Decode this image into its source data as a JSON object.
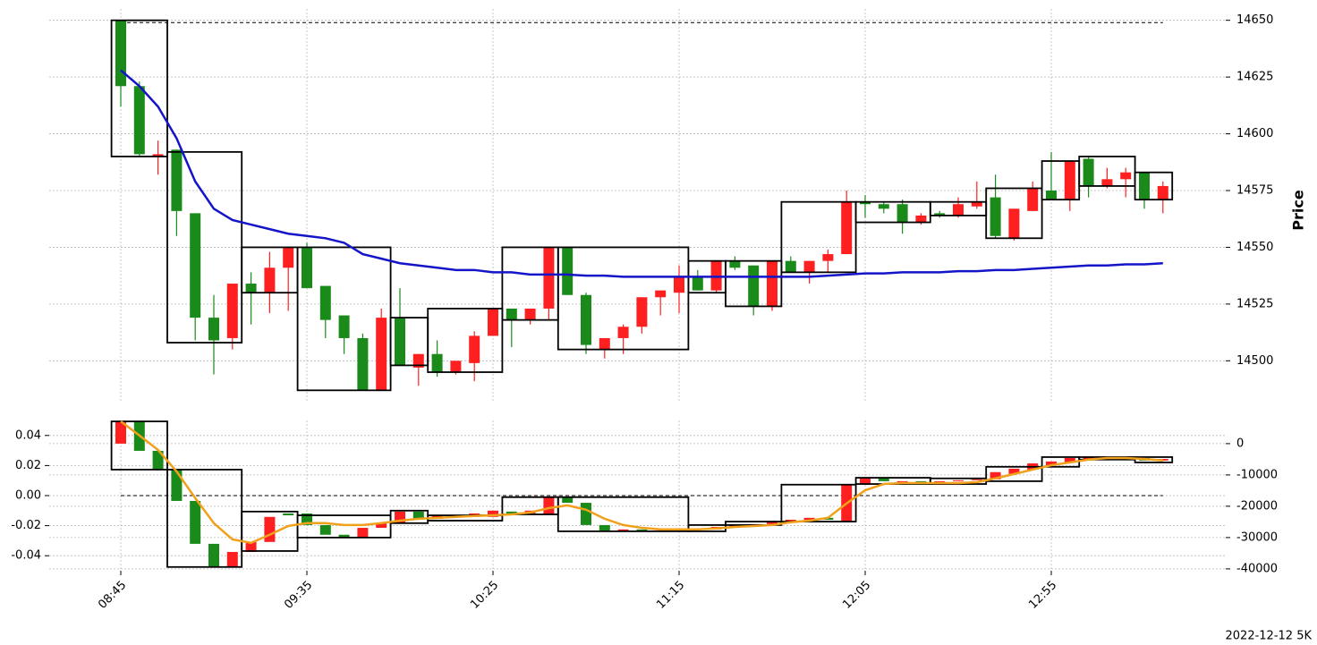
{
  "chart_data": [
    {
      "type": "candlestick",
      "ylabel": "Price",
      "ylim": [
        14482,
        14655
      ],
      "yticks": [
        14500,
        14525,
        14550,
        14575,
        14600,
        14625,
        14650
      ],
      "grid": true,
      "up_color": "#fe2020",
      "down_color": "#1a8a1a",
      "values": [
        [
          14650,
          14650,
          14612,
          14621
        ],
        [
          14621,
          14623,
          14590,
          14591
        ],
        [
          14590,
          14597,
          14582,
          14591
        ],
        [
          14593,
          14593,
          14555,
          14566
        ],
        [
          14565,
          14565,
          14509,
          14519
        ],
        [
          14519,
          14529,
          14494,
          14509
        ],
        [
          14510,
          14534,
          14505,
          14534
        ],
        [
          14534,
          14539,
          14516,
          14530
        ],
        [
          14530,
          14548,
          14521,
          14541
        ],
        [
          14541,
          14550,
          14522,
          14550
        ],
        [
          14550,
          14552,
          14532,
          14532
        ],
        [
          14533,
          14533,
          14510,
          14518
        ],
        [
          14520,
          14520,
          14503,
          14510
        ],
        [
          14510,
          14512,
          14487,
          14487
        ],
        [
          14487,
          14523,
          14487,
          14519
        ],
        [
          14519,
          14532,
          14498,
          14498
        ],
        [
          14497,
          14503,
          14489,
          14503
        ],
        [
          14503,
          14509,
          14493,
          14495
        ],
        [
          14495,
          14500,
          14494,
          14500
        ],
        [
          14499,
          14513,
          14491,
          14511
        ],
        [
          14511,
          14523,
          14511,
          14523
        ],
        [
          14523,
          14523,
          14506,
          14518
        ],
        [
          14518,
          14523,
          14516,
          14523
        ],
        [
          14523,
          14550,
          14518,
          14550
        ],
        [
          14550,
          14550,
          14529,
          14529
        ],
        [
          14529,
          14530,
          14503,
          14507
        ],
        [
          14505,
          14510,
          14501,
          14510
        ],
        [
          14510,
          14516,
          14503,
          14515
        ],
        [
          14515,
          14528,
          14512,
          14528
        ],
        [
          14528,
          14531,
          14520,
          14531
        ],
        [
          14530,
          14542,
          14521,
          14537
        ],
        [
          14537,
          14540,
          14531,
          14531
        ],
        [
          14531,
          14544,
          14530,
          14544
        ],
        [
          14544,
          14546,
          14540,
          14541
        ],
        [
          14542,
          14542,
          14520,
          14524
        ],
        [
          14524,
          14544,
          14522,
          14544
        ],
        [
          14544,
          14546,
          14539,
          14539
        ],
        [
          14539,
          14544,
          14534,
          14544
        ],
        [
          14544,
          14549,
          14539,
          14547
        ],
        [
          14547,
          14575,
          14547,
          14570
        ],
        [
          14570,
          14573,
          14563,
          14569
        ],
        [
          14569,
          14570,
          14565,
          14567
        ],
        [
          14569,
          14571,
          14556,
          14561
        ],
        [
          14561,
          14565,
          14560,
          14564
        ],
        [
          14565,
          14566,
          14563,
          14564
        ],
        [
          14564,
          14572,
          14563,
          14569
        ],
        [
          14568,
          14579,
          14567,
          14570
        ],
        [
          14572,
          14582,
          14554,
          14555
        ],
        [
          14554,
          14567,
          14553,
          14567
        ],
        [
          14566,
          14579,
          14566,
          14576
        ],
        [
          14575,
          14592,
          14571,
          14571
        ],
        [
          14571,
          14588,
          14566,
          14588
        ],
        [
          14589,
          14590,
          14572,
          14577
        ],
        [
          14577,
          14585,
          14576,
          14580
        ],
        [
          14580,
          14585,
          14572,
          14583
        ],
        [
          14583,
          14583,
          14567,
          14571
        ],
        [
          14571,
          14579,
          14565,
          14577
        ]
      ],
      "line": {
        "color": "#1414c8",
        "values": [
          14628,
          14621,
          14612,
          14598,
          14579,
          14567,
          14562,
          14560,
          14558,
          14556,
          14555,
          14554,
          14552,
          14547,
          14545,
          14543,
          14542,
          14541,
          14540,
          14540,
          14539,
          14539,
          14538,
          14538,
          14538,
          14537.5,
          14537.5,
          14537,
          14537,
          14537,
          14537,
          14537,
          14537,
          14537,
          14537,
          14537,
          14537,
          14537,
          14537.5,
          14538,
          14538.5,
          14538.5,
          14539,
          14539,
          14539,
          14539.5,
          14539.5,
          14540,
          14540,
          14540.5,
          14541,
          14541.5,
          14542,
          14542,
          14542.5,
          14542.5,
          14543
        ]
      },
      "hline": 14649,
      "boxes": [
        {
          "start": 0,
          "end": 2,
          "high": 14650,
          "low": 14590
        },
        {
          "start": 3,
          "end": 6,
          "high": 14592,
          "low": 14508
        },
        {
          "start": 7,
          "end": 9,
          "high": 14550,
          "low": 14530
        },
        {
          "start": 10,
          "end": 14,
          "high": 14550,
          "low": 14487
        },
        {
          "start": 15,
          "end": 16,
          "high": 14519,
          "low": 14498
        },
        {
          "start": 17,
          "end": 20,
          "high": 14523,
          "low": 14495
        },
        {
          "start": 21,
          "end": 23,
          "high": 14550,
          "low": 14518
        },
        {
          "start": 24,
          "end": 30,
          "high": 14550,
          "low": 14505
        },
        {
          "start": 31,
          "end": 32,
          "high": 14544,
          "low": 14530
        },
        {
          "start": 33,
          "end": 35,
          "high": 14544,
          "low": 14524
        },
        {
          "start": 36,
          "end": 39,
          "high": 14570,
          "low": 14539
        },
        {
          "start": 40,
          "end": 43,
          "high": 14570,
          "low": 14561
        },
        {
          "start": 44,
          "end": 46,
          "high": 14570,
          "low": 14564
        },
        {
          "start": 47,
          "end": 49,
          "high": 14576,
          "low": 14554
        },
        {
          "start": 50,
          "end": 51,
          "high": 14588,
          "low": 14571
        },
        {
          "start": 52,
          "end": 54,
          "high": 14590,
          "low": 14577
        },
        {
          "start": 55,
          "end": 56,
          "high": 14583,
          "low": 14571
        }
      ]
    },
    {
      "type": "candlestick",
      "categories": [
        "08:45",
        null,
        null,
        null,
        null,
        null,
        null,
        null,
        null,
        null,
        "09:35",
        null,
        null,
        null,
        null,
        null,
        null,
        null,
        null,
        null,
        "10:25",
        null,
        null,
        null,
        null,
        null,
        null,
        null,
        null,
        null,
        "11:15",
        null,
        null,
        null,
        null,
        null,
        null,
        null,
        null,
        null,
        "12:05",
        null,
        null,
        null,
        null,
        null,
        null,
        null,
        null,
        null,
        "12:55",
        null,
        null,
        null,
        null,
        null,
        null
      ],
      "ylim": [
        -0.05,
        0.05
      ],
      "yticks": [
        -0.04,
        -0.02,
        {
          "value": 0,
          "label": "0.00"
        },
        0.02,
        0.04
      ],
      "y2lim": [
        -40600,
        7400
      ],
      "y2ticks": [
        -40000,
        -30000,
        -20000,
        -10000,
        0
      ],
      "grid": true,
      "hline": 0,
      "values": [
        [
          0,
          7100
        ],
        [
          7100,
          -2300
        ],
        [
          -2300,
          -8300
        ],
        [
          -8300,
          -18300
        ],
        [
          -18300,
          -32000
        ],
        [
          -32000,
          -39400
        ],
        [
          -39400,
          -34600
        ],
        [
          -34600,
          -31400
        ],
        [
          -31400,
          -23400
        ],
        [
          -22300,
          -22900
        ],
        [
          -22300,
          -26000
        ],
        [
          -26000,
          -29100
        ],
        [
          -29100,
          -30000
        ],
        [
          -30000,
          -26900
        ],
        [
          -26900,
          -25400
        ],
        [
          -25400,
          -21700
        ],
        [
          -21700,
          -24000
        ],
        [
          -24000,
          -22900
        ],
        [
          -22900,
          -23400
        ],
        [
          -23400,
          -22300
        ],
        [
          -23400,
          -21400
        ],
        [
          -21700,
          -22300
        ],
        [
          -22300,
          -21400
        ],
        [
          -22600,
          -17100
        ],
        [
          -17100,
          -18900
        ],
        [
          -18900,
          -26000
        ],
        [
          -26000,
          -28000
        ],
        [
          -28000,
          -27400
        ],
        [
          -27400,
          -28000
        ],
        [
          -28000,
          -27700
        ],
        [
          -27700,
          -27100
        ],
        [
          -27100,
          -27400
        ],
        [
          -27400,
          -26600
        ],
        [
          -26600,
          -26000
        ],
        [
          -26000,
          -25700
        ],
        [
          -25700,
          -24900
        ],
        [
          -24900,
          -24300
        ],
        [
          -24300,
          -23700
        ],
        [
          -23700,
          -24300
        ],
        [
          -24900,
          -13100
        ],
        [
          -13100,
          -10900
        ],
        [
          -10900,
          -12000
        ],
        [
          -12600,
          -12000
        ],
        [
          -12000,
          -12300
        ],
        [
          -12300,
          -12000
        ],
        [
          -12000,
          -11700
        ],
        [
          -11700,
          -11400
        ],
        [
          -11400,
          -9100
        ],
        [
          -9700,
          -8000
        ],
        [
          -8300,
          -6300
        ],
        [
          -6900,
          -5700
        ],
        [
          -6000,
          -4600
        ],
        [
          -5100,
          -4300
        ],
        [
          -4300,
          -4900
        ],
        [
          -4900,
          -4600
        ],
        [
          -4600,
          -5400
        ],
        [
          -5400,
          -4900
        ]
      ],
      "line": {
        "color": "#f0a01a",
        "values": [
          7100,
          2600,
          -2000,
          -8900,
          -17400,
          -25400,
          -30600,
          -31700,
          -29100,
          -26300,
          -25400,
          -25400,
          -26000,
          -26000,
          -25400,
          -24600,
          -24000,
          -23700,
          -23400,
          -23100,
          -22900,
          -22600,
          -22000,
          -20600,
          -19700,
          -21100,
          -24000,
          -26000,
          -26900,
          -27400,
          -27400,
          -27400,
          -27100,
          -26600,
          -26300,
          -26000,
          -25100,
          -24600,
          -23700,
          -19100,
          -14900,
          -12900,
          -12600,
          -12600,
          -12600,
          -12600,
          -12300,
          -11100,
          -9700,
          -8300,
          -6900,
          -6000,
          -5100,
          -4600,
          -4600,
          -4900,
          -5400
        ]
      },
      "boxes": [
        {
          "start": 0,
          "end": 2,
          "high": 7100,
          "low": -8300
        },
        {
          "start": 3,
          "end": 6,
          "high": -8300,
          "low": -39400
        },
        {
          "start": 7,
          "end": 9,
          "high": -21700,
          "low": -34300
        },
        {
          "start": 10,
          "end": 14,
          "high": -22900,
          "low": -30000
        },
        {
          "start": 15,
          "end": 16,
          "high": -21400,
          "low": -25400
        },
        {
          "start": 17,
          "end": 20,
          "high": -22900,
          "low": -24600
        },
        {
          "start": 21,
          "end": 23,
          "high": -17100,
          "low": -22600
        },
        {
          "start": 24,
          "end": 30,
          "high": -17100,
          "low": -28000
        },
        {
          "start": 31,
          "end": 32,
          "high": -26000,
          "low": -28000
        },
        {
          "start": 33,
          "end": 35,
          "high": -24900,
          "low": -26000
        },
        {
          "start": 36,
          "end": 39,
          "high": -13100,
          "low": -24900
        },
        {
          "start": 40,
          "end": 43,
          "high": -10900,
          "low": -12900
        },
        {
          "start": 44,
          "end": 46,
          "high": -11100,
          "low": -12900
        },
        {
          "start": 47,
          "end": 49,
          "high": -7400,
          "low": -12000
        },
        {
          "start": 50,
          "end": 51,
          "high": -4300,
          "low": -7400
        },
        {
          "start": 52,
          "end": 54,
          "high": -4300,
          "low": -5100
        },
        {
          "start": 55,
          "end": 56,
          "high": -4300,
          "low": -6000
        }
      ]
    }
  ],
  "footer": "2022-12-12 5K"
}
